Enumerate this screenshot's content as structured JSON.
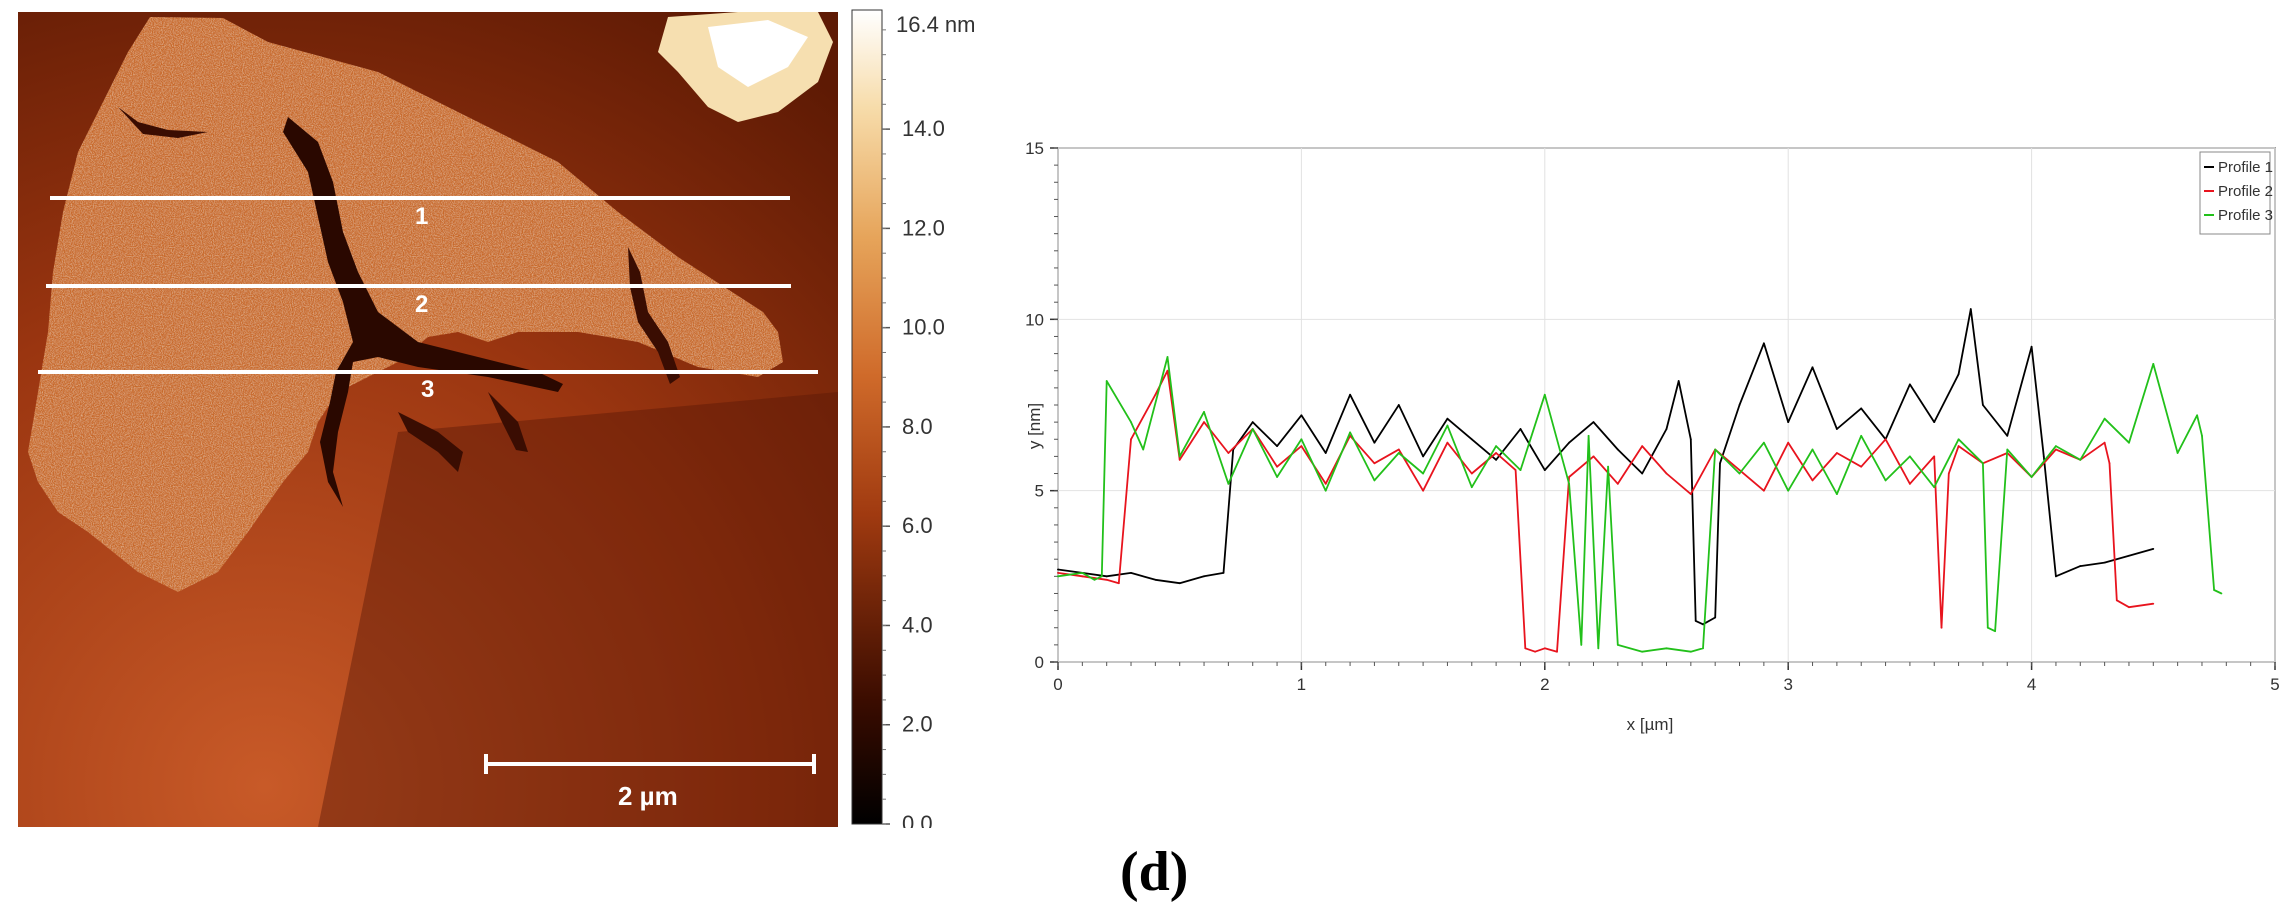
{
  "panel_label": "(d)",
  "afm_image": {
    "scale_bar_label": "2 µm",
    "profile_line_labels": [
      "1",
      "2",
      "3"
    ],
    "colorbar": {
      "unit_label": "16.4 nm",
      "ticks": [
        "14.0",
        "12.0",
        "10.0",
        "8.0",
        "6.0",
        "4.0",
        "2.0",
        "0.0"
      ],
      "max": 16.4,
      "colors": {
        "dark": "#1a0400",
        "mid": "#b4461a",
        "light": "#e7a45a",
        "top": "#ffffff"
      }
    }
  },
  "chart_data": {
    "type": "line",
    "xlabel": "x [µm]",
    "ylabel": "y [nm]",
    "xlim": [
      0,
      5
    ],
    "ylim": [
      0,
      15
    ],
    "xticks": [
      "0",
      "1",
      "2",
      "3",
      "4",
      "5"
    ],
    "yticks": [
      "0",
      "5",
      "10",
      "15"
    ],
    "grid": true,
    "legend_position": "top-right",
    "series": [
      {
        "name": "Profile 1",
        "color": "#000000",
        "x": [
          0,
          0.1,
          0.2,
          0.3,
          0.4,
          0.5,
          0.6,
          0.68,
          0.72,
          0.8,
          0.9,
          1.0,
          1.1,
          1.2,
          1.3,
          1.4,
          1.5,
          1.6,
          1.7,
          1.8,
          1.9,
          2.0,
          2.1,
          2.2,
          2.3,
          2.4,
          2.5,
          2.55,
          2.6,
          2.62,
          2.65,
          2.7,
          2.72,
          2.8,
          2.9,
          3.0,
          3.1,
          3.2,
          3.3,
          3.4,
          3.5,
          3.6,
          3.7,
          3.75,
          3.8,
          3.9,
          4.0,
          4.05,
          4.1,
          4.2,
          4.3,
          4.4,
          4.5
        ],
        "y": [
          2.7,
          2.6,
          2.5,
          2.6,
          2.4,
          2.3,
          2.5,
          2.6,
          6.2,
          7.0,
          6.3,
          7.2,
          6.1,
          7.8,
          6.4,
          7.5,
          6.0,
          7.1,
          6.5,
          5.9,
          6.8,
          5.6,
          6.4,
          7.0,
          6.2,
          5.5,
          6.8,
          8.2,
          6.5,
          1.2,
          1.1,
          1.3,
          5.8,
          7.5,
          9.3,
          7.0,
          8.6,
          6.8,
          7.4,
          6.5,
          8.1,
          7.0,
          8.4,
          10.3,
          7.5,
          6.6,
          9.2,
          6.0,
          2.5,
          2.8,
          2.9,
          3.1,
          3.3
        ]
      },
      {
        "name": "Profile 2",
        "color": "#e8141e",
        "x": [
          0,
          0.1,
          0.2,
          0.25,
          0.3,
          0.4,
          0.45,
          0.5,
          0.6,
          0.7,
          0.8,
          0.9,
          1.0,
          1.1,
          1.2,
          1.3,
          1.4,
          1.5,
          1.6,
          1.7,
          1.8,
          1.88,
          1.92,
          1.96,
          2.0,
          2.05,
          2.1,
          2.2,
          2.3,
          2.4,
          2.5,
          2.6,
          2.7,
          2.8,
          2.9,
          3.0,
          3.1,
          3.2,
          3.3,
          3.4,
          3.5,
          3.6,
          3.63,
          3.66,
          3.7,
          3.8,
          3.9,
          4.0,
          4.1,
          4.2,
          4.3,
          4.32,
          4.35,
          4.4,
          4.5
        ],
        "y": [
          2.6,
          2.5,
          2.4,
          2.3,
          6.5,
          7.8,
          8.5,
          5.9,
          7.0,
          6.1,
          6.8,
          5.7,
          6.3,
          5.2,
          6.6,
          5.8,
          6.2,
          5.0,
          6.4,
          5.5,
          6.1,
          5.6,
          0.4,
          0.3,
          0.4,
          0.3,
          5.4,
          6.0,
          5.2,
          6.3,
          5.5,
          4.9,
          6.2,
          5.6,
          5.0,
          6.4,
          5.3,
          6.1,
          5.7,
          6.5,
          5.2,
          6.0,
          1.0,
          5.5,
          6.3,
          5.8,
          6.1,
          5.4,
          6.2,
          5.9,
          6.4,
          5.8,
          1.8,
          1.6,
          1.7
        ]
      },
      {
        "name": "Profile 3",
        "color": "#22c01a",
        "x": [
          0,
          0.1,
          0.15,
          0.18,
          0.2,
          0.3,
          0.35,
          0.45,
          0.5,
          0.6,
          0.7,
          0.8,
          0.9,
          1.0,
          1.1,
          1.2,
          1.3,
          1.4,
          1.5,
          1.6,
          1.7,
          1.8,
          1.9,
          2.0,
          2.1,
          2.15,
          2.18,
          2.22,
          2.26,
          2.3,
          2.4,
          2.5,
          2.6,
          2.65,
          2.7,
          2.8,
          2.9,
          3.0,
          3.1,
          3.2,
          3.3,
          3.4,
          3.5,
          3.6,
          3.7,
          3.8,
          3.82,
          3.85,
          3.9,
          4.0,
          4.1,
          4.2,
          4.3,
          4.4,
          4.5,
          4.6,
          4.68,
          4.7,
          4.75,
          4.78
        ],
        "y": [
          2.5,
          2.6,
          2.4,
          2.5,
          8.2,
          7.0,
          6.2,
          8.9,
          6.0,
          7.3,
          5.2,
          6.8,
          5.4,
          6.5,
          5.0,
          6.7,
          5.3,
          6.1,
          5.5,
          6.9,
          5.1,
          6.3,
          5.6,
          7.8,
          5.2,
          0.5,
          6.6,
          0.4,
          5.7,
          0.5,
          0.3,
          0.4,
          0.3,
          0.4,
          6.2,
          5.5,
          6.4,
          5.0,
          6.2,
          4.9,
          6.6,
          5.3,
          6.0,
          5.1,
          6.5,
          5.8,
          1.0,
          0.9,
          6.2,
          5.4,
          6.3,
          5.9,
          7.1,
          6.4,
          8.7,
          6.1,
          7.2,
          6.6,
          2.1,
          2.0
        ]
      }
    ]
  }
}
